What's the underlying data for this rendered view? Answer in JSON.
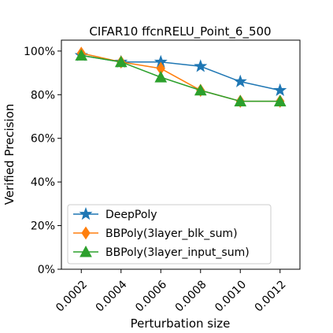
{
  "chart_data": {
    "type": "line",
    "title": "CIFAR10 ffcnRELU_Point_6_500",
    "xlabel": "Perturbation size",
    "ylabel": "Verified Precision",
    "x": [
      0.0002,
      0.0004,
      0.0006,
      0.0008,
      0.001,
      0.0012
    ],
    "x_tick_labels": [
      "0.0002",
      "0.0004",
      "0.0006",
      "0.0008",
      "0.0010",
      "0.0012"
    ],
    "y_tick_values": [
      0,
      20,
      40,
      60,
      80,
      100
    ],
    "y_tick_labels": [
      "0%",
      "20%",
      "40%",
      "60%",
      "80%",
      "100%"
    ],
    "xlim": [
      0.0001,
      0.0013
    ],
    "ylim": [
      0,
      105
    ],
    "grid": false,
    "legend_position": "lower-left",
    "series": [
      {
        "name": "DeepPoly",
        "color": "#1f77b4",
        "marker": "star",
        "values": [
          98,
          95,
          95,
          93,
          86,
          82
        ]
      },
      {
        "name": "BBPoly(3layer_blk_sum)",
        "color": "#ff7f0e",
        "marker": "diamond",
        "values": [
          99,
          95,
          92,
          82,
          77,
          77
        ]
      },
      {
        "name": "BBPoly(3layer_input_sum)",
        "color": "#2ca02c",
        "marker": "triangle",
        "values": [
          98,
          95,
          88,
          82,
          77,
          77
        ]
      }
    ]
  }
}
